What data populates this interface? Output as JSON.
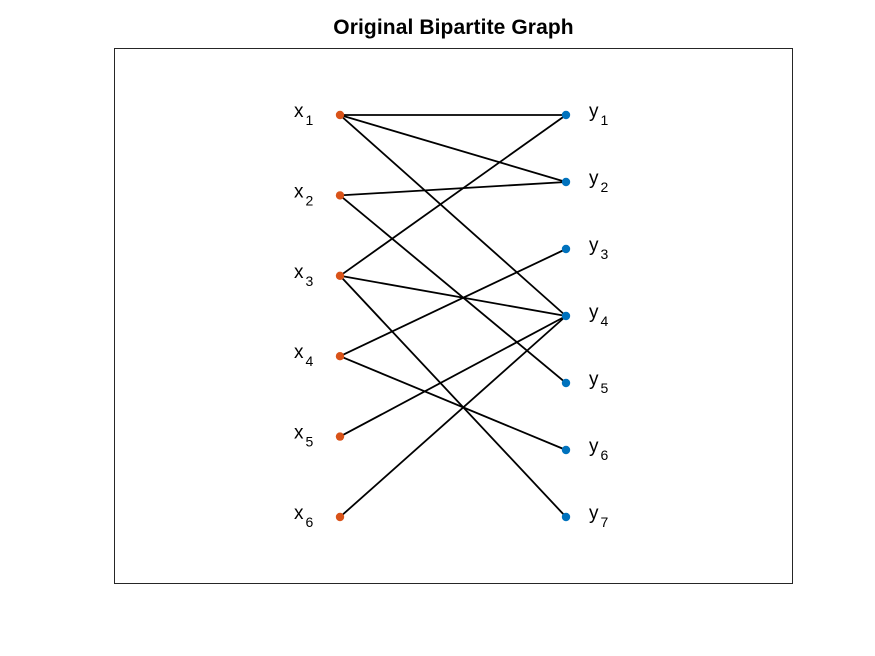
{
  "title": "Original Bipartite Graph",
  "colors": {
    "left_node": "#D95319",
    "right_node": "#0072BD",
    "edge": "#000000",
    "axes_border": "#262626"
  },
  "left_nodes": [
    {
      "id": "x1",
      "base": "x",
      "sub": "1"
    },
    {
      "id": "x2",
      "base": "x",
      "sub": "2"
    },
    {
      "id": "x3",
      "base": "x",
      "sub": "3"
    },
    {
      "id": "x4",
      "base": "x",
      "sub": "4"
    },
    {
      "id": "x5",
      "base": "x",
      "sub": "5"
    },
    {
      "id": "x6",
      "base": "x",
      "sub": "6"
    }
  ],
  "right_nodes": [
    {
      "id": "y1",
      "base": "y",
      "sub": "1"
    },
    {
      "id": "y2",
      "base": "y",
      "sub": "2"
    },
    {
      "id": "y3",
      "base": "y",
      "sub": "3"
    },
    {
      "id": "y4",
      "base": "y",
      "sub": "4"
    },
    {
      "id": "y5",
      "base": "y",
      "sub": "5"
    },
    {
      "id": "y6",
      "base": "y",
      "sub": "6"
    },
    {
      "id": "y7",
      "base": "y",
      "sub": "7"
    }
  ],
  "edges": [
    [
      "x1",
      "y1"
    ],
    [
      "x1",
      "y2"
    ],
    [
      "x1",
      "y4"
    ],
    [
      "x2",
      "y2"
    ],
    [
      "x2",
      "y5"
    ],
    [
      "x3",
      "y1"
    ],
    [
      "x3",
      "y4"
    ],
    [
      "x3",
      "y7"
    ],
    [
      "x4",
      "y3"
    ],
    [
      "x4",
      "y6"
    ],
    [
      "x5",
      "y4"
    ],
    [
      "x6",
      "y4"
    ]
  ]
}
